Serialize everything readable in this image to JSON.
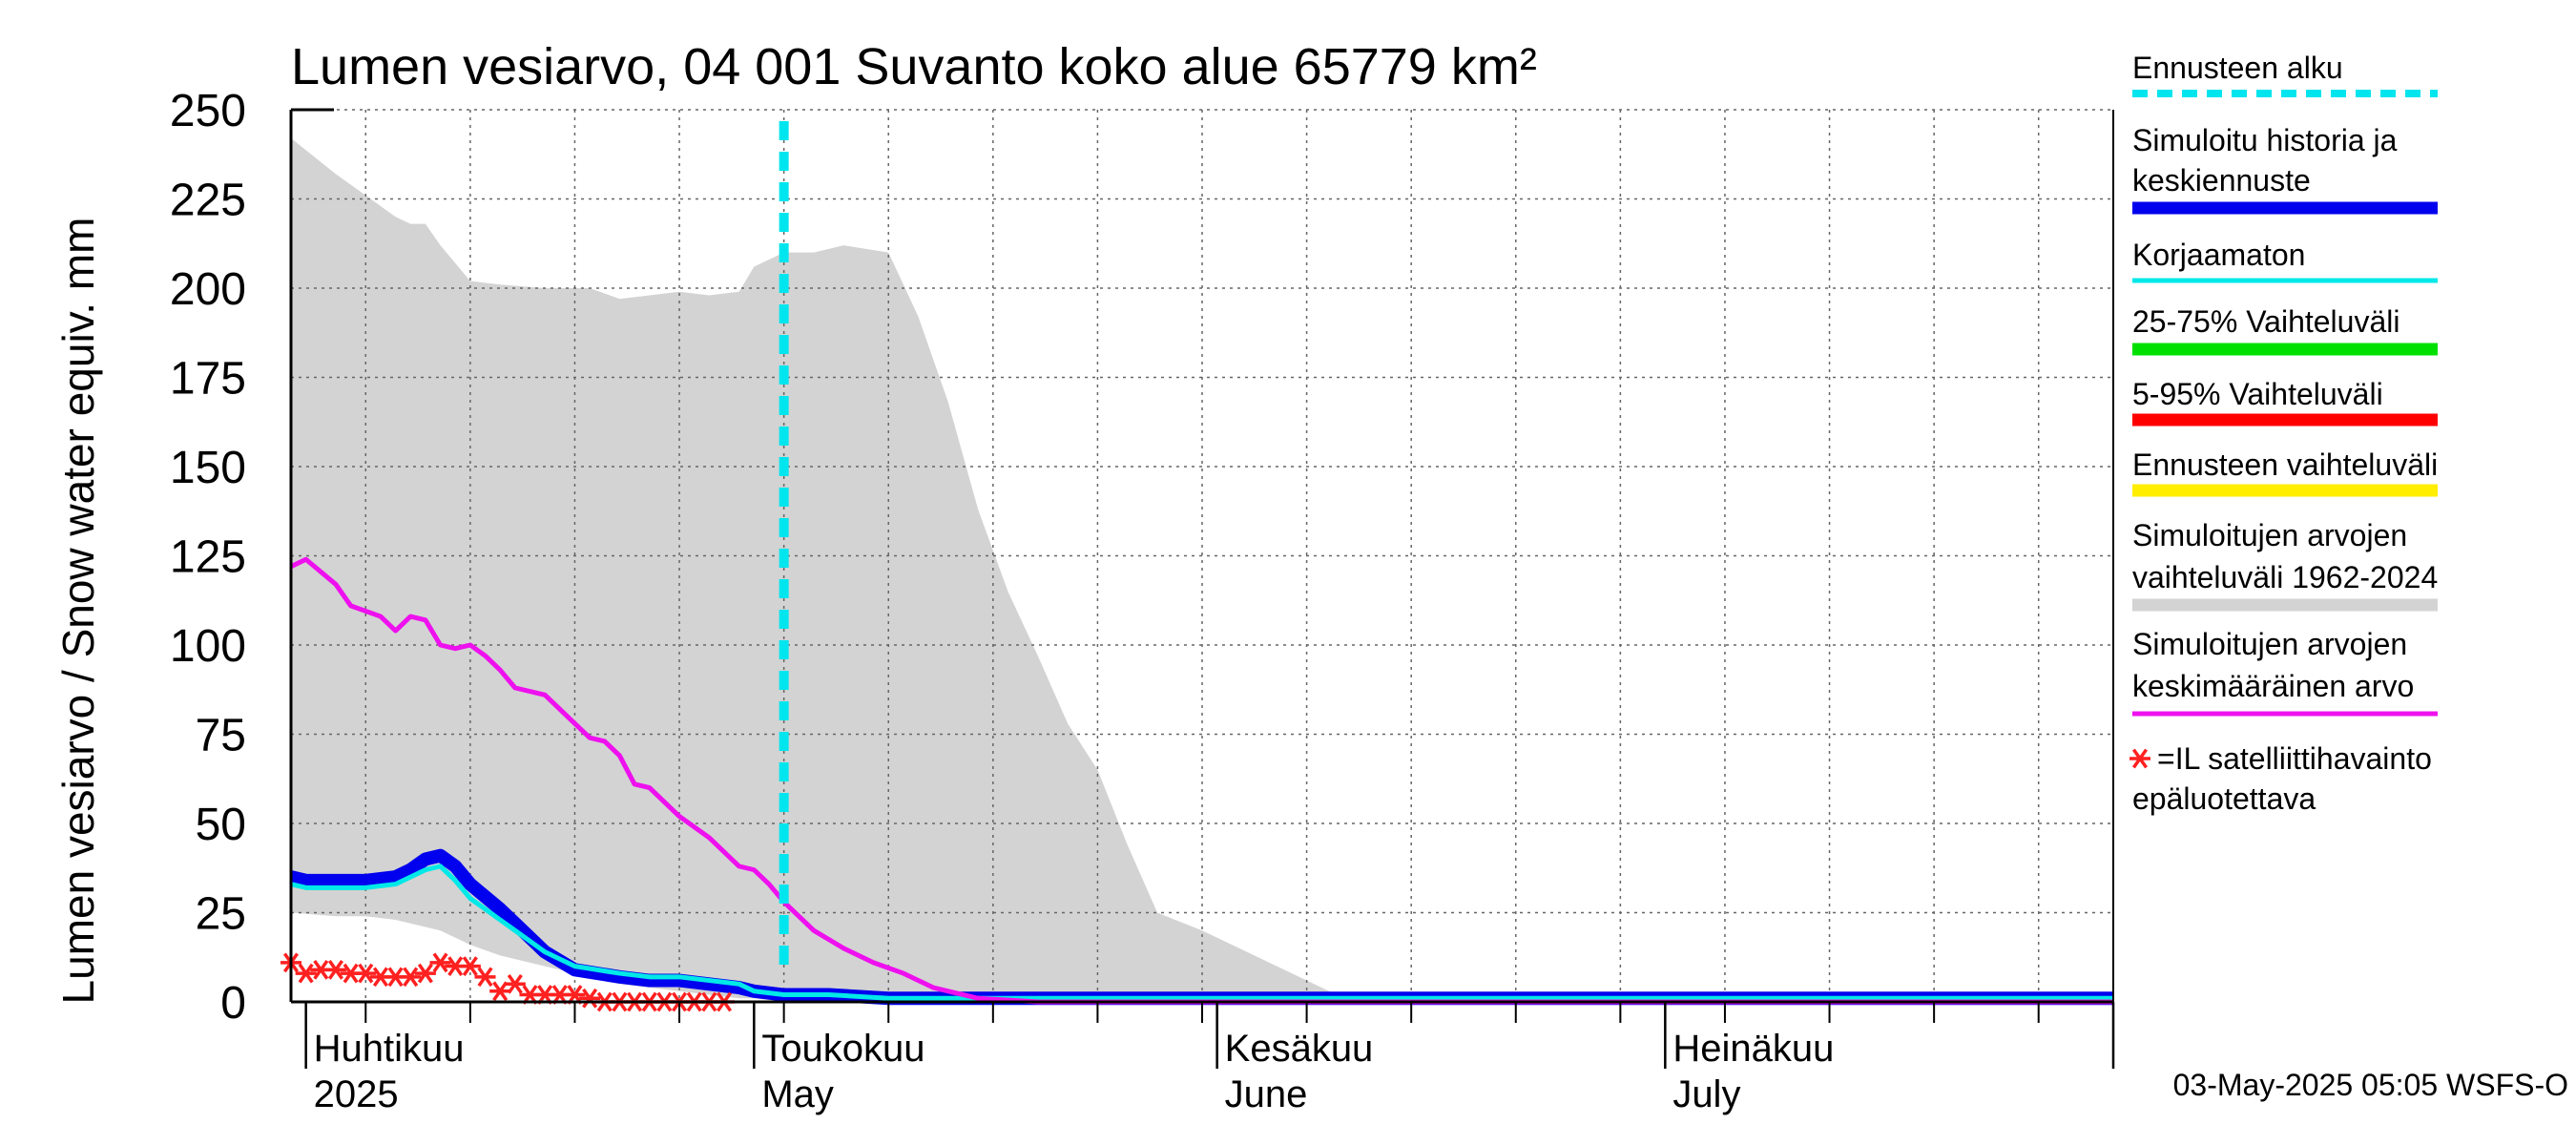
{
  "chart_data": {
    "type": "line",
    "title": "Lumen vesiarvo, 04 001 Suvanto koko alue 65779 km²",
    "ylabel": "Lumen vesiarvo / Snow water equiv.    mm",
    "ylim": [
      0,
      250
    ],
    "yticks": [
      "250",
      "225",
      "200",
      "175",
      "150",
      "125",
      "100",
      "75",
      "50",
      "25",
      "0"
    ],
    "xlim": [
      "2025-03-31",
      "2025-07-31"
    ],
    "grid": true,
    "legend_position": "right",
    "month_labels": [
      {
        "date": "2025-04-01",
        "line1": "Huhtikuu",
        "line2": "2025"
      },
      {
        "date": "2025-05-01",
        "line1": "Toukokuu",
        "line2": "May"
      },
      {
        "date": "2025-06-01",
        "line1": "Kesäkuu",
        "line2": "June"
      },
      {
        "date": "2025-07-01",
        "line1": "Heinäkuu",
        "line2": "July"
      }
    ],
    "forecast_start": "2025-05-03",
    "footer": "03-May-2025 05:05 WSFS-O",
    "historical_range": {
      "name": "Simuloitujen arvojen vaihteluväli 1962-2024",
      "color": "#d3d3d3",
      "dates": [
        "2025-03-31",
        "2025-04-03",
        "2025-04-05",
        "2025-04-07",
        "2025-04-08",
        "2025-04-09",
        "2025-04-10",
        "2025-04-12",
        "2025-04-14",
        "2025-04-17",
        "2025-04-20",
        "2025-04-22",
        "2025-04-24",
        "2025-04-26",
        "2025-04-28",
        "2025-04-30",
        "2025-05-01",
        "2025-05-03",
        "2025-05-05",
        "2025-05-07",
        "2025-05-10",
        "2025-05-12",
        "2025-05-14",
        "2025-05-16",
        "2025-05-18",
        "2025-05-20",
        "2025-05-22",
        "2025-05-24",
        "2025-05-26",
        "2025-05-28",
        "2025-05-31",
        "2025-06-10",
        "2025-07-31"
      ],
      "upper": [
        242,
        232,
        226,
        220,
        218,
        218,
        212,
        202,
        201,
        200,
        200,
        197,
        198,
        199,
        198,
        199,
        206,
        210,
        210,
        212,
        210,
        192,
        168,
        138,
        115,
        97,
        78,
        65,
        44,
        25,
        20,
        0,
        0
      ],
      "lower": [
        25,
        24,
        24,
        23,
        22,
        21,
        20,
        16,
        13,
        10,
        7,
        5,
        4,
        3,
        2,
        1,
        1,
        0,
        0,
        0,
        0,
        0,
        0,
        0,
        0,
        0,
        0,
        0,
        0,
        0,
        0,
        0,
        0
      ]
    },
    "series": [
      {
        "name": "Simuloitujen arvojen keskimääräinen arvo",
        "color": "#ee10ee",
        "dates": [
          "2025-03-31",
          "2025-04-01",
          "2025-04-03",
          "2025-04-04",
          "2025-04-06",
          "2025-04-07",
          "2025-04-08",
          "2025-04-09",
          "2025-04-10",
          "2025-04-11",
          "2025-04-12",
          "2025-04-13",
          "2025-04-14",
          "2025-04-15",
          "2025-04-17",
          "2025-04-19",
          "2025-04-20",
          "2025-04-21",
          "2025-04-22",
          "2025-04-23",
          "2025-04-24",
          "2025-04-26",
          "2025-04-28",
          "2025-04-29",
          "2025-04-30",
          "2025-05-01",
          "2025-05-02",
          "2025-05-03",
          "2025-05-05",
          "2025-05-07",
          "2025-05-09",
          "2025-05-11",
          "2025-05-13",
          "2025-05-16",
          "2025-05-20",
          "2025-05-31",
          "2025-07-31"
        ],
        "values": [
          122,
          124,
          117,
          111,
          108,
          104,
          108,
          107,
          100,
          99,
          100,
          97,
          93,
          88,
          86,
          78,
          74,
          73,
          69,
          61,
          60,
          52,
          46,
          42,
          38,
          37,
          33,
          28,
          20,
          15,
          11,
          8,
          4,
          1,
          0,
          0,
          0
        ]
      },
      {
        "name": "Simuloitu historia ja keskiennuste",
        "color": "#0000ee",
        "dates": [
          "2025-03-31",
          "2025-04-01",
          "2025-04-03",
          "2025-04-05",
          "2025-04-07",
          "2025-04-08",
          "2025-04-09",
          "2025-04-10",
          "2025-04-11",
          "2025-04-12",
          "2025-04-14",
          "2025-04-15",
          "2025-04-17",
          "2025-04-19",
          "2025-04-22",
          "2025-04-24",
          "2025-04-26",
          "2025-04-28",
          "2025-04-30",
          "2025-05-01",
          "2025-05-03",
          "2025-05-06",
          "2025-05-10",
          "2025-05-20",
          "2025-07-31"
        ],
        "values": [
          35,
          34,
          34,
          34,
          35,
          37,
          40,
          41,
          38,
          33,
          26,
          22,
          14,
          9,
          7,
          6,
          6,
          5,
          4,
          3,
          2,
          2,
          1,
          1,
          1
        ]
      },
      {
        "name": "Korjaamaton",
        "color": "#00e8e8",
        "dates": [
          "2025-03-31",
          "2025-04-01",
          "2025-04-03",
          "2025-04-05",
          "2025-04-07",
          "2025-04-08",
          "2025-04-09",
          "2025-04-10",
          "2025-04-11",
          "2025-04-12",
          "2025-04-14",
          "2025-04-15",
          "2025-04-17",
          "2025-04-19",
          "2025-04-22",
          "2025-04-24",
          "2025-04-26",
          "2025-04-28",
          "2025-04-30",
          "2025-05-01",
          "2025-05-03",
          "2025-05-06",
          "2025-05-10",
          "2025-05-20",
          "2025-07-31"
        ],
        "values": [
          33,
          32,
          32,
          32,
          33,
          35,
          37,
          38,
          34,
          29,
          23,
          20,
          14,
          10,
          8,
          7,
          7,
          6,
          5,
          3,
          2,
          2,
          1,
          1,
          1
        ]
      }
    ],
    "satellite_points": {
      "name": "=IL satelliittihavainto epäluotettava",
      "color": "#ff2020",
      "dates": [
        "2025-03-31",
        "2025-04-01",
        "2025-04-02",
        "2025-04-03",
        "2025-04-04",
        "2025-04-05",
        "2025-04-06",
        "2025-04-07",
        "2025-04-08",
        "2025-04-09",
        "2025-04-10",
        "2025-04-11",
        "2025-04-12",
        "2025-04-13",
        "2025-04-14",
        "2025-04-15",
        "2025-04-16",
        "2025-04-17",
        "2025-04-18",
        "2025-04-19",
        "2025-04-20",
        "2025-04-21",
        "2025-04-22",
        "2025-04-23",
        "2025-04-24",
        "2025-04-25",
        "2025-04-26",
        "2025-04-27",
        "2025-04-28",
        "2025-04-29"
      ],
      "values": [
        11,
        8,
        9,
        9,
        8,
        8,
        7,
        7,
        7,
        8,
        11,
        10,
        10,
        7,
        3,
        5,
        2,
        2,
        2,
        2,
        1,
        0,
        0,
        0,
        0,
        0,
        0,
        0,
        0,
        0
      ]
    },
    "legend": [
      {
        "label": "Ennusteen alku",
        "color": "#00e5ee",
        "style": "dashed"
      },
      {
        "label": "Simuloitu historia ja keskiennuste",
        "color": "#0000ee",
        "style": "thick"
      },
      {
        "label": "Korjaamaton",
        "color": "#00e8e8",
        "style": "thin"
      },
      {
        "label": "25-75% Vaihteluväli",
        "color": "#00e000",
        "style": "thick"
      },
      {
        "label": "5-95% Vaihteluväli",
        "color": "#ff0000",
        "style": "thick"
      },
      {
        "label": "Ennusteen vaihteluväli",
        "color": "#ffee00",
        "style": "thick"
      },
      {
        "label": "Simuloitujen arvojen vaihteluväli 1962-2024",
        "color": "#d3d3d3",
        "style": "thick"
      },
      {
        "label": "Simuloitujen arvojen keskimääräinen arvo",
        "color": "#ee10ee",
        "style": "thin"
      },
      {
        "label": "=IL satelliittihavainto epäluotettava",
        "color": "#ff2020",
        "style": "marker"
      }
    ]
  }
}
